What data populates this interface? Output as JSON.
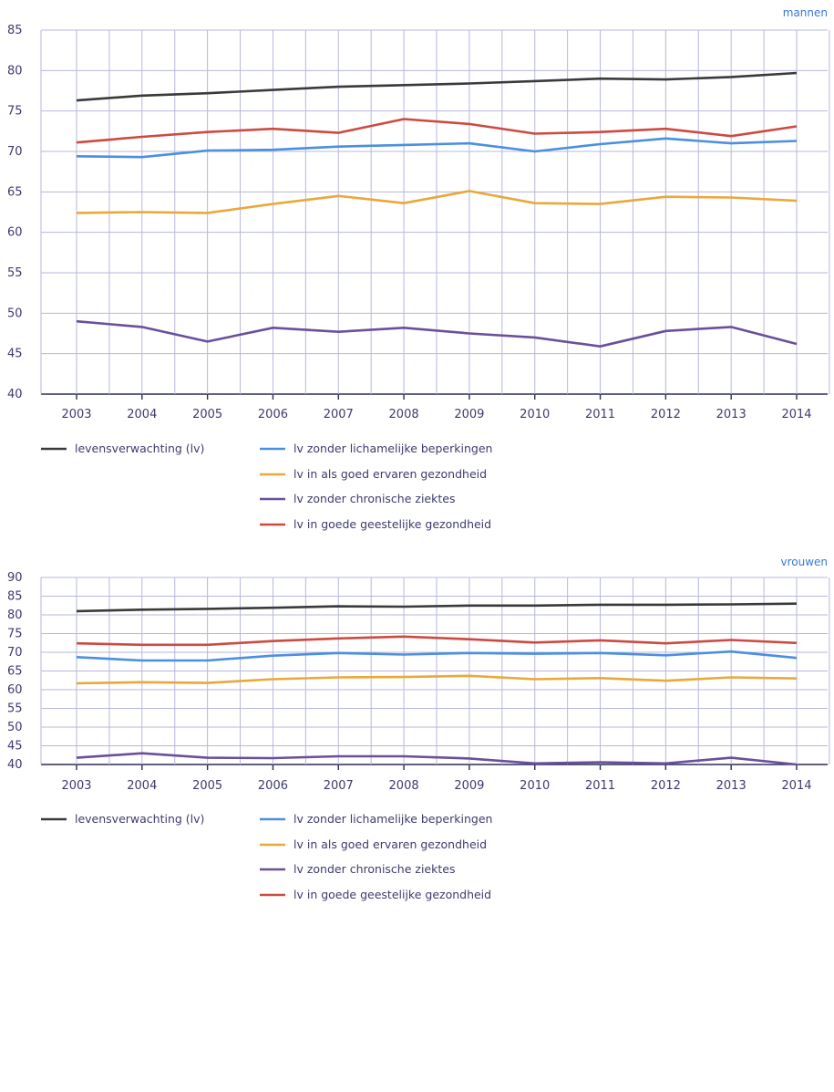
{
  "chart_data": [
    {
      "type": "line",
      "title": "mannen",
      "x": [
        2003,
        2004,
        2005,
        2006,
        2007,
        2008,
        2009,
        2010,
        2011,
        2012,
        2013,
        2014
      ],
      "ylim": [
        40,
        85
      ],
      "yticks": [
        40,
        45,
        50,
        55,
        60,
        65,
        70,
        75,
        80,
        85
      ],
      "grid": true,
      "legend": "bottom",
      "series": [
        {
          "name": "levensverwachting (lv)",
          "color": "#3a3a3a",
          "values": [
            76.3,
            76.9,
            77.2,
            77.6,
            78.0,
            78.2,
            78.4,
            78.7,
            79.0,
            78.9,
            79.2,
            79.7
          ]
        },
        {
          "name": "lv zonder lichamelijke beperkingen",
          "color": "#4a8fe0",
          "values": [
            69.4,
            69.3,
            70.1,
            70.2,
            70.6,
            70.8,
            71.0,
            70.0,
            70.9,
            71.6,
            71.0,
            71.3
          ]
        },
        {
          "name": "lv in als goed ervaren gezondheid",
          "color": "#e9a83a",
          "values": [
            62.4,
            62.5,
            62.4,
            63.5,
            64.5,
            63.6,
            65.1,
            63.6,
            63.5,
            64.4,
            64.3,
            63.9
          ]
        },
        {
          "name": "lv zonder chronische ziektes",
          "color": "#6a4f9c",
          "values": [
            49.0,
            48.3,
            46.5,
            48.2,
            47.7,
            48.2,
            47.5,
            47.0,
            45.9,
            47.8,
            48.3,
            46.2
          ]
        },
        {
          "name": "lv in goede geestelijke gezondheid",
          "color": "#cd4a40",
          "values": [
            71.1,
            71.8,
            72.4,
            72.8,
            72.3,
            74.0,
            73.4,
            72.2,
            72.4,
            72.8,
            71.9,
            73.1
          ]
        }
      ]
    },
    {
      "type": "line",
      "title": "vrouwen",
      "x": [
        2003,
        2004,
        2005,
        2006,
        2007,
        2008,
        2009,
        2010,
        2011,
        2012,
        2013,
        2014
      ],
      "ylim": [
        40,
        90
      ],
      "yticks": [
        40,
        45,
        50,
        55,
        60,
        65,
        70,
        75,
        80,
        85,
        90
      ],
      "grid": true,
      "legend": "bottom",
      "series": [
        {
          "name": "levensverwachting (lv)",
          "color": "#3a3a3a",
          "values": [
            81.0,
            81.4,
            81.6,
            81.9,
            82.3,
            82.2,
            82.5,
            82.5,
            82.7,
            82.7,
            82.8,
            83.0
          ]
        },
        {
          "name": "lv zonder lichamelijke beperkingen",
          "color": "#4a8fe0",
          "values": [
            68.7,
            67.8,
            67.8,
            69.1,
            69.8,
            69.4,
            69.8,
            69.6,
            69.8,
            69.2,
            70.2,
            68.5
          ]
        },
        {
          "name": "lv in als goed ervaren gezondheid",
          "color": "#e9a83a",
          "values": [
            61.7,
            62.0,
            61.8,
            62.8,
            63.3,
            63.4,
            63.7,
            62.8,
            63.1,
            62.4,
            63.3,
            63.0
          ]
        },
        {
          "name": "lv zonder chronische ziektes",
          "color": "#6a4f9c",
          "values": [
            41.8,
            43.0,
            41.8,
            41.7,
            42.2,
            42.2,
            41.6,
            40.3,
            40.6,
            40.3,
            41.8,
            40.0
          ]
        },
        {
          "name": "lv in goede geestelijke gezondheid",
          "color": "#cd4a40",
          "values": [
            72.4,
            72.0,
            72.0,
            73.0,
            73.7,
            74.2,
            73.5,
            72.6,
            73.2,
            72.4,
            73.3,
            72.5
          ]
        }
      ]
    }
  ]
}
